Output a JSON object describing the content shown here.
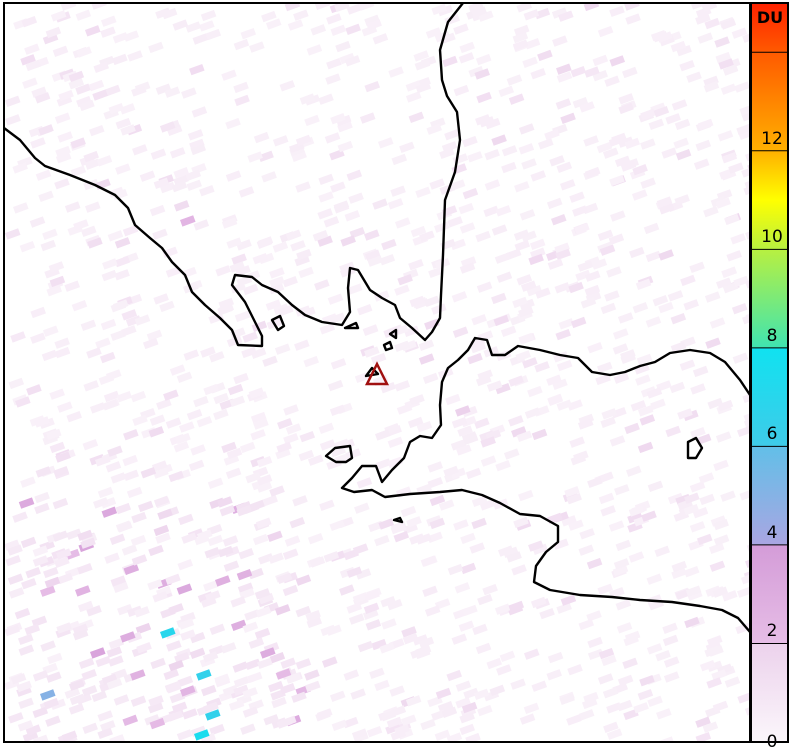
{
  "colorbar": {
    "unit": "DU",
    "ticks": [
      "0",
      "2",
      "4",
      "6",
      "8",
      "10",
      "12"
    ],
    "range": [
      0,
      15
    ],
    "stops": [
      {
        "v": 0,
        "c": "#fbf6fb"
      },
      {
        "v": 2,
        "c": "#ecd2ec"
      },
      {
        "v": 2.01,
        "c": "#e6bde6"
      },
      {
        "v": 4,
        "c": "#d49cd8"
      },
      {
        "v": 4.01,
        "c": "#a9a6e2"
      },
      {
        "v": 6,
        "c": "#62bfe8"
      },
      {
        "v": 6.01,
        "c": "#3fcbe9"
      },
      {
        "v": 8,
        "c": "#10e2f0"
      },
      {
        "v": 8.01,
        "c": "#40e4b0"
      },
      {
        "v": 10,
        "c": "#b8f040"
      },
      {
        "v": 11,
        "c": "#ffff00"
      },
      {
        "v": 12,
        "c": "#ffb000"
      },
      {
        "v": 14,
        "c": "#ff5a00"
      },
      {
        "v": 15,
        "c": "#ff2200"
      }
    ]
  },
  "map": {
    "coastline_color": "#000000",
    "volcano_marker": {
      "shape": "triangle",
      "color": "#a01010"
    }
  }
}
